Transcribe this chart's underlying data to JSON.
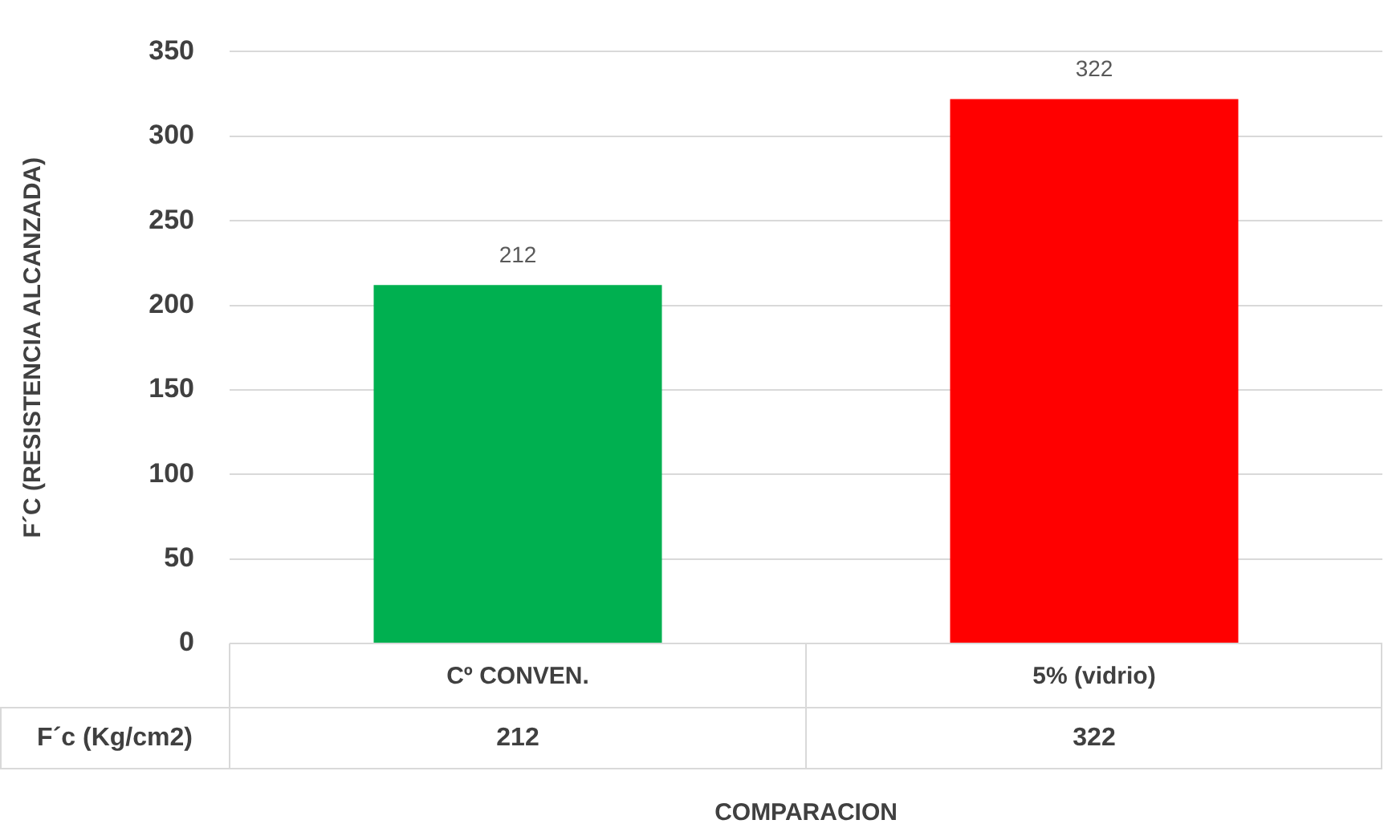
{
  "chart_data": {
    "type": "bar",
    "xlabel": "COMPARACION",
    "ylabel": "F´C (RESISTENCIA ALCANZADA)",
    "categories": [
      "Cº CONVEN.",
      "5% (vidrio)"
    ],
    "series": [
      {
        "name": "F´c (Kg/cm2)",
        "colors": [
          "#00b050",
          "#ff0000"
        ],
        "values": [
          212,
          322
        ],
        "value_labels": [
          "212",
          "322"
        ]
      }
    ],
    "ylim": [
      0,
      350
    ],
    "yticks": [
      0,
      50,
      100,
      150,
      200,
      250,
      300,
      350
    ],
    "grid": "y",
    "legend": false,
    "annotations": [
      "212",
      "322"
    ]
  }
}
